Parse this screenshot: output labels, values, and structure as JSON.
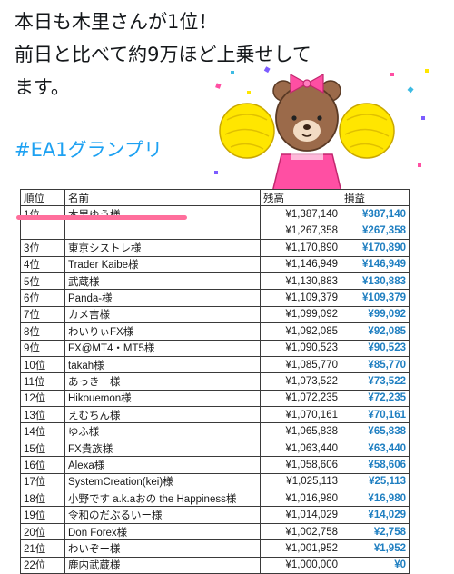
{
  "tweet": {
    "lines": [
      "本日も木里さんが1位！",
      "前日と比べて約9万ほど上乗せして",
      "ます。"
    ],
    "hashtag": "#EA1グランプリ"
  },
  "table": {
    "headers": {
      "rank": "順位",
      "name": "名前",
      "balance": "残高",
      "profit": "損益"
    },
    "rows": [
      {
        "rank": "1位",
        "name": "木里ゆう様",
        "balance": "¥1,387,140",
        "profit": "¥387,140"
      },
      {
        "rank": "",
        "name": "",
        "balance": "¥1,267,358",
        "profit": "¥267,358"
      },
      {
        "rank": "3位",
        "name": "東京シストレ様",
        "balance": "¥1,170,890",
        "profit": "¥170,890"
      },
      {
        "rank": "4位",
        "name": "Trader Kaibe様",
        "balance": "¥1,146,949",
        "profit": "¥146,949"
      },
      {
        "rank": "5位",
        "name": "武蔵様",
        "balance": "¥1,130,883",
        "profit": "¥130,883"
      },
      {
        "rank": "6位",
        "name": "Panda-様",
        "balance": "¥1,109,379",
        "profit": "¥109,379"
      },
      {
        "rank": "7位",
        "name": "カメ吉様",
        "balance": "¥1,099,092",
        "profit": "¥99,092"
      },
      {
        "rank": "8位",
        "name": "わいりぃFX様",
        "balance": "¥1,092,085",
        "profit": "¥92,085"
      },
      {
        "rank": "9位",
        "name": "FX@MT4・MT5様",
        "balance": "¥1,090,523",
        "profit": "¥90,523"
      },
      {
        "rank": "10位",
        "name": "takah様",
        "balance": "¥1,085,770",
        "profit": "¥85,770"
      },
      {
        "rank": "11位",
        "name": "あっき一様",
        "balance": "¥1,073,522",
        "profit": "¥73,522"
      },
      {
        "rank": "12位",
        "name": "Hikouemon様",
        "balance": "¥1,072,235",
        "profit": "¥72,235"
      },
      {
        "rank": "13位",
        "name": "えむちん様",
        "balance": "¥1,070,161",
        "profit": "¥70,161"
      },
      {
        "rank": "14位",
        "name": "ゆふ様",
        "balance": "¥1,065,838",
        "profit": "¥65,838"
      },
      {
        "rank": "15位",
        "name": "FX貴族様",
        "balance": "¥1,063,440",
        "profit": "¥63,440"
      },
      {
        "rank": "16位",
        "name": "Alexa様",
        "balance": "¥1,058,606",
        "profit": "¥58,606"
      },
      {
        "rank": "17位",
        "name": "SystemCreation(kei)様",
        "balance": "¥1,025,113",
        "profit": "¥25,113"
      },
      {
        "rank": "18位",
        "name": "小野です a.k.aおの the Happiness様",
        "balance": "¥1,016,980",
        "profit": "¥16,980"
      },
      {
        "rank": "19位",
        "name": "令和のだぶるいー様",
        "balance": "¥1,014,029",
        "profit": "¥14,029"
      },
      {
        "rank": "20位",
        "name": "Don Forex様",
        "balance": "¥1,002,758",
        "profit": "¥2,758"
      },
      {
        "rank": "21位",
        "name": "わいぞー様",
        "balance": "¥1,001,952",
        "profit": "¥1,952"
      },
      {
        "rank": "22位",
        "name": "鹿内武蔵様",
        "balance": "¥1,000,000",
        "profit": "¥0"
      }
    ]
  },
  "colors": {
    "hashtag": "#1da1f2",
    "profit": "#1f7fc1",
    "highlight": "#ff6f9c",
    "sticker_body": "#9b6a4a",
    "sticker_pompom": "#ffe600",
    "sticker_outfit": "#ff4fa3"
  },
  "sticker": {
    "icon": "cheerleader-bear-sticker"
  }
}
